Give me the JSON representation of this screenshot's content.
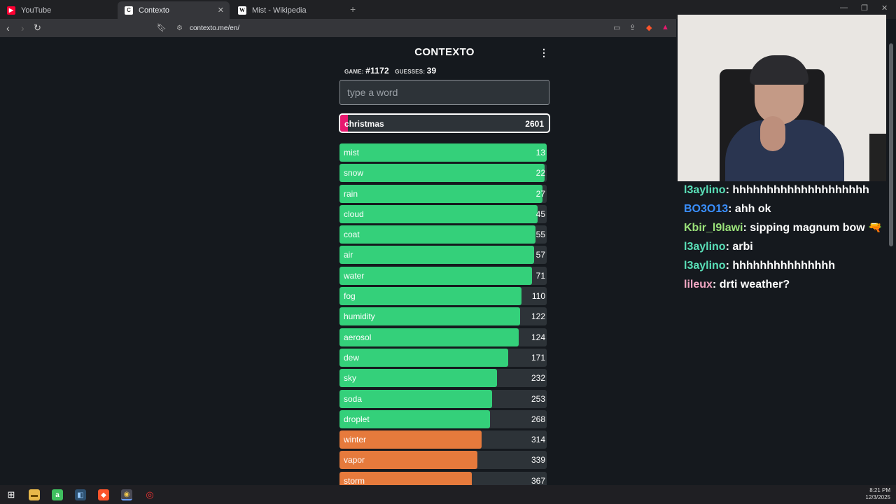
{
  "tabs": [
    {
      "label": "YouTube",
      "active": false,
      "color": "#ff0033",
      "glyph": "▶"
    },
    {
      "label": "Contexto",
      "active": true,
      "color": "#ffffff",
      "glyph": "C"
    },
    {
      "label": "Mist - Wikipedia",
      "active": false,
      "color": "#ffffff",
      "glyph": "W"
    }
  ],
  "url": "contexto.me/en/",
  "game": {
    "title": "CONTEXTO",
    "game_label": "GAME:",
    "game_number": "#1172",
    "guesses_label": "GUESSES:",
    "guesses_count": "39",
    "input_placeholder": "type a word",
    "current": {
      "word": "christmas",
      "rank": "2601"
    },
    "guesses": [
      {
        "word": "mist",
        "rank": "13",
        "fill": 1.0,
        "color": "#34d07a"
      },
      {
        "word": "snow",
        "rank": "22",
        "fill": 0.99,
        "color": "#34d07a"
      },
      {
        "word": "rain",
        "rank": "27",
        "fill": 0.98,
        "color": "#34d07a"
      },
      {
        "word": "cloud",
        "rank": "45",
        "fill": 0.955,
        "color": "#34d07a"
      },
      {
        "word": "coat",
        "rank": "55",
        "fill": 0.945,
        "color": "#34d07a"
      },
      {
        "word": "air",
        "rank": "57",
        "fill": 0.94,
        "color": "#34d07a"
      },
      {
        "word": "water",
        "rank": "71",
        "fill": 0.93,
        "color": "#34d07a"
      },
      {
        "word": "fog",
        "rank": "110",
        "fill": 0.88,
        "color": "#34d07a"
      },
      {
        "word": "humidity",
        "rank": "122",
        "fill": 0.87,
        "color": "#34d07a"
      },
      {
        "word": "aerosol",
        "rank": "124",
        "fill": 0.865,
        "color": "#34d07a"
      },
      {
        "word": "dew",
        "rank": "171",
        "fill": 0.815,
        "color": "#34d07a"
      },
      {
        "word": "sky",
        "rank": "232",
        "fill": 0.76,
        "color": "#34d07a"
      },
      {
        "word": "soda",
        "rank": "253",
        "fill": 0.735,
        "color": "#34d07a"
      },
      {
        "word": "droplet",
        "rank": "268",
        "fill": 0.725,
        "color": "#34d07a"
      },
      {
        "word": "winter",
        "rank": "314",
        "fill": 0.685,
        "color": "#e67a3c"
      },
      {
        "word": "vapor",
        "rank": "339",
        "fill": 0.665,
        "color": "#e67a3c"
      },
      {
        "word": "storm",
        "rank": "367",
        "fill": 0.64,
        "color": "#e67a3c"
      }
    ]
  },
  "chat": [
    {
      "user": "l3aylino",
      "color": "#5ae0b8",
      "message": "hhhhhhhhhhhhhhhhhhhh"
    },
    {
      "user": "BO3O13",
      "color": "#3a8fff",
      "message": "ahh ok"
    },
    {
      "user": "Kbir_l9lawi",
      "color": "#9be37a",
      "message": "sipping magnum bow 🔫"
    },
    {
      "user": "l3aylino",
      "color": "#5ae0b8",
      "message": "arbi"
    },
    {
      "user": "l3aylino",
      "color": "#5ae0b8",
      "message": "hhhhhhhhhhhhhhh"
    },
    {
      "user": "lileux",
      "color": "#f2a7c3",
      "message": "drti weather?"
    }
  ],
  "clock": {
    "time": "8:21 PM",
    "date": "12/3/2025"
  }
}
